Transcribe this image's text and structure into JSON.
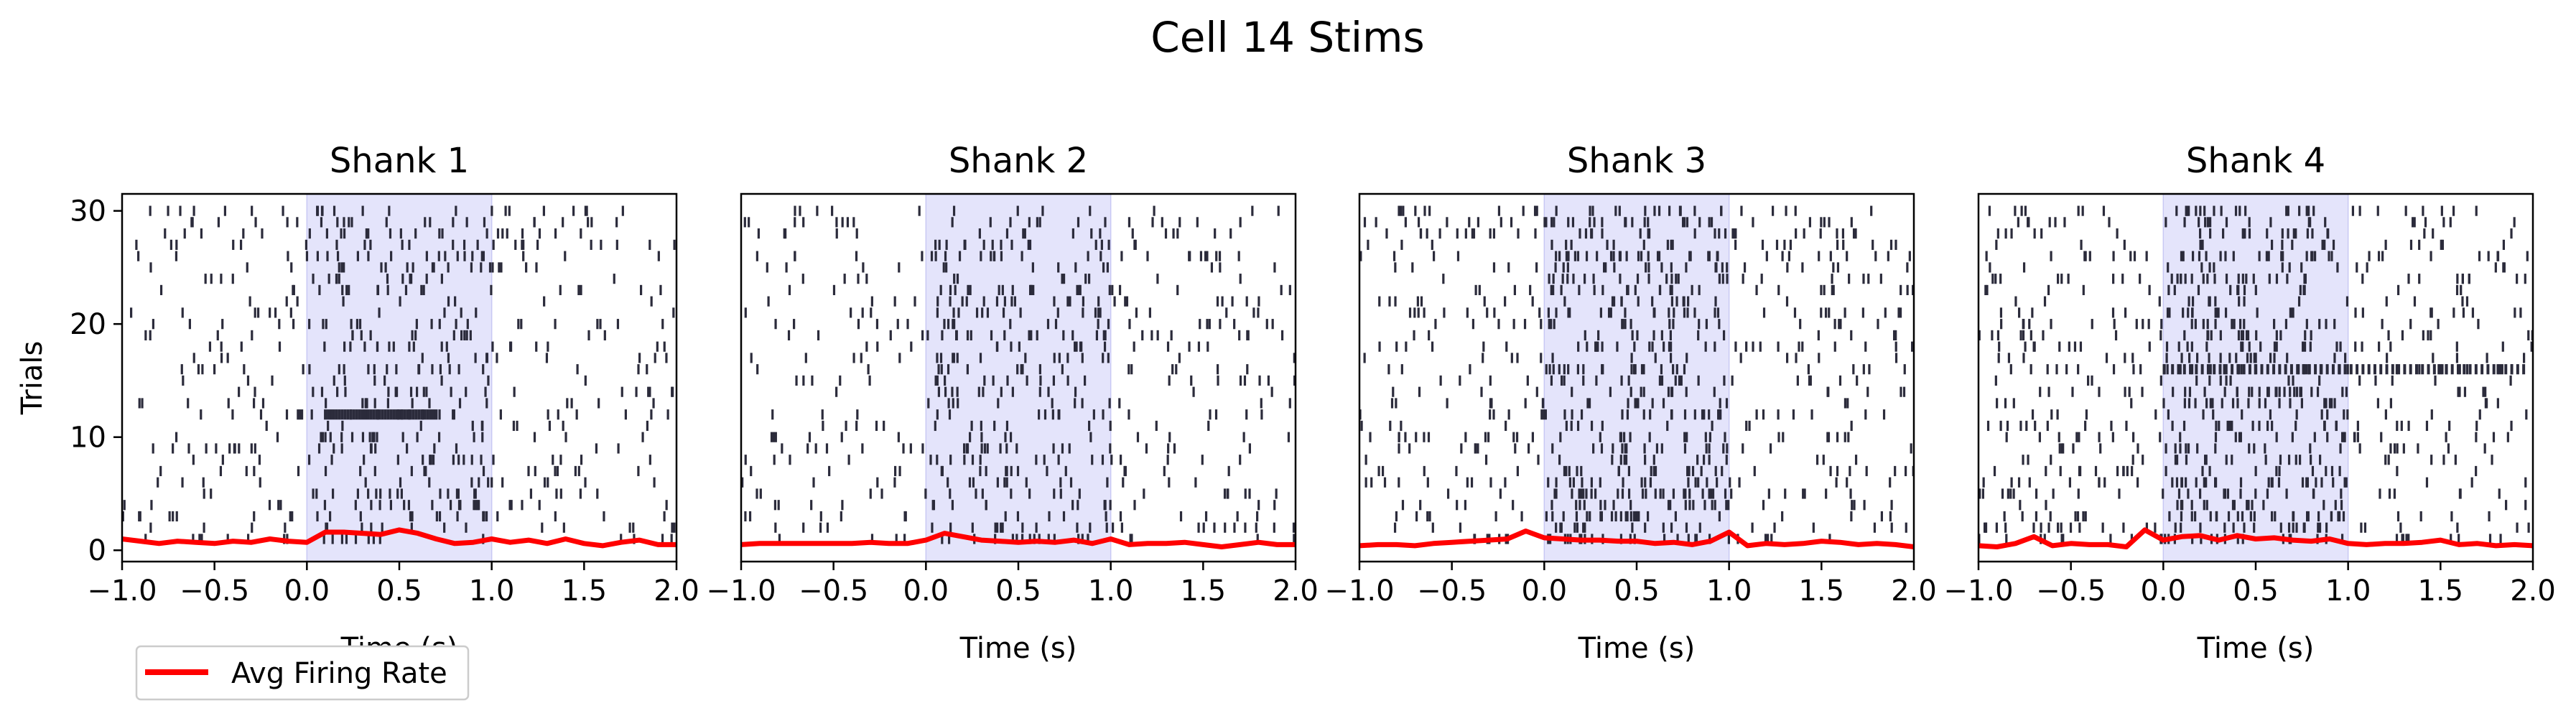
{
  "figure": {
    "title": "Cell 14 Stims"
  },
  "legend": {
    "label": "Avg Firing Rate",
    "color": "#ff0000",
    "placement": "lower-left"
  },
  "chart_data": [
    {
      "type": "raster",
      "title": "Shank 1",
      "xlabel": "Time (s)",
      "ylabel": "Trials",
      "xlim": [
        -1.0,
        2.0
      ],
      "ylim": [
        -1,
        31.5
      ],
      "xticks": [
        "−1.0",
        "−0.5",
        "0.0",
        "0.5",
        "1.0",
        "1.5",
        "2.0"
      ],
      "xtick_values": [
        -1.0,
        -0.5,
        0.0,
        0.5,
        1.0,
        1.5,
        2.0
      ],
      "yticks": [
        "0",
        "10",
        "20",
        "30"
      ],
      "ytick_values": [
        0,
        10,
        20,
        30
      ],
      "stim_window": [
        0.0,
        1.0
      ],
      "stim_color": "#e4e4fb",
      "spike_color": "#2b2b3b",
      "seed": 14101,
      "density": 18,
      "burst": {
        "trial": 12,
        "start": 0.1,
        "end": 0.7,
        "count": 40
      },
      "firing_rate": {
        "name": "Avg Firing Rate",
        "x": [
          -1.0,
          -0.9,
          -0.8,
          -0.7,
          -0.6,
          -0.5,
          -0.4,
          -0.3,
          -0.2,
          -0.1,
          0.0,
          0.1,
          0.2,
          0.3,
          0.4,
          0.5,
          0.6,
          0.7,
          0.8,
          0.9,
          1.0,
          1.1,
          1.2,
          1.3,
          1.4,
          1.5,
          1.6,
          1.7,
          1.8,
          1.9,
          2.0
        ],
        "y": [
          1.0,
          0.8,
          0.6,
          0.8,
          0.7,
          0.6,
          0.8,
          0.7,
          1.0,
          0.8,
          0.7,
          1.6,
          1.6,
          1.5,
          1.4,
          1.8,
          1.5,
          1.0,
          0.6,
          0.7,
          1.0,
          0.7,
          0.9,
          0.6,
          1.0,
          0.6,
          0.4,
          0.7,
          0.9,
          0.5,
          0.5
        ]
      }
    },
    {
      "type": "raster",
      "title": "Shank 2",
      "xlabel": "Time (s)",
      "ylabel": "",
      "xlim": [
        -1.0,
        2.0
      ],
      "ylim": [
        -1,
        31.5
      ],
      "xticks": [
        "−1.0",
        "−0.5",
        "0.0",
        "0.5",
        "1.0",
        "1.5",
        "2.0"
      ],
      "xtick_values": [
        -1.0,
        -0.5,
        0.0,
        0.5,
        1.0,
        1.5,
        2.0
      ],
      "yticks": [],
      "ytick_values": [],
      "stim_window": [
        0.0,
        1.0
      ],
      "stim_color": "#e4e4fb",
      "spike_color": "#2b2b3b",
      "seed": 14202,
      "density": 20,
      "burst": null,
      "firing_rate": {
        "name": "Avg Firing Rate",
        "x": [
          -1.0,
          -0.9,
          -0.8,
          -0.7,
          -0.6,
          -0.5,
          -0.4,
          -0.3,
          -0.2,
          -0.1,
          0.0,
          0.1,
          0.2,
          0.3,
          0.4,
          0.5,
          0.6,
          0.7,
          0.8,
          0.9,
          1.0,
          1.1,
          1.2,
          1.3,
          1.4,
          1.5,
          1.6,
          1.7,
          1.8,
          1.9,
          2.0
        ],
        "y": [
          0.5,
          0.6,
          0.6,
          0.6,
          0.6,
          0.6,
          0.6,
          0.7,
          0.6,
          0.6,
          0.9,
          1.5,
          1.2,
          0.9,
          0.8,
          0.7,
          0.8,
          0.7,
          0.9,
          0.6,
          1.0,
          0.5,
          0.6,
          0.6,
          0.7,
          0.5,
          0.3,
          0.5,
          0.7,
          0.5,
          0.5
        ]
      }
    },
    {
      "type": "raster",
      "title": "Shank 3",
      "xlabel": "Time (s)",
      "ylabel": "",
      "xlim": [
        -1.0,
        2.0
      ],
      "ylim": [
        -1,
        31.5
      ],
      "xticks": [
        "−1.0",
        "−0.5",
        "0.0",
        "0.5",
        "1.0",
        "1.5",
        "2.0"
      ],
      "xtick_values": [
        -1.0,
        -0.5,
        0.0,
        0.5,
        1.0,
        1.5,
        2.0
      ],
      "yticks": [],
      "ytick_values": [],
      "stim_window": [
        0.0,
        1.0
      ],
      "stim_color": "#e4e4fb",
      "spike_color": "#2b2b3b",
      "seed": 14303,
      "density": 26,
      "burst": null,
      "firing_rate": {
        "name": "Avg Firing Rate",
        "x": [
          -1.0,
          -0.9,
          -0.8,
          -0.7,
          -0.6,
          -0.5,
          -0.4,
          -0.3,
          -0.2,
          -0.1,
          0.0,
          0.1,
          0.2,
          0.3,
          0.4,
          0.5,
          0.6,
          0.7,
          0.8,
          0.9,
          1.0,
          1.1,
          1.2,
          1.3,
          1.4,
          1.5,
          1.6,
          1.7,
          1.8,
          1.9,
          2.0
        ],
        "y": [
          0.4,
          0.5,
          0.5,
          0.4,
          0.6,
          0.7,
          0.8,
          0.9,
          1.0,
          1.7,
          1.1,
          1.0,
          0.9,
          0.9,
          0.8,
          0.8,
          0.6,
          0.7,
          0.5,
          0.8,
          1.6,
          0.4,
          0.6,
          0.5,
          0.6,
          0.8,
          0.7,
          0.5,
          0.6,
          0.5,
          0.3
        ]
      }
    },
    {
      "type": "raster",
      "title": "Shank 4",
      "xlabel": "Time (s)",
      "ylabel": "",
      "xlim": [
        -1.0,
        2.0
      ],
      "ylim": [
        -1,
        31.5
      ],
      "xticks": [
        "−1.0",
        "−0.5",
        "0.0",
        "0.5",
        "1.0",
        "1.5",
        "2.0"
      ],
      "xtick_values": [
        -1.0,
        -0.5,
        0.0,
        0.5,
        1.0,
        1.5,
        2.0
      ],
      "yticks": [],
      "ytick_values": [],
      "stim_window": [
        0.0,
        1.0
      ],
      "stim_color": "#e4e4fb",
      "spike_color": "#2b2b3b",
      "seed": 14404,
      "density": 28,
      "burst": {
        "trial": 16,
        "start": 0.05,
        "end": 1.95,
        "count": 60
      },
      "firing_rate": {
        "name": "Avg Firing Rate",
        "x": [
          -1.0,
          -0.9,
          -0.8,
          -0.7,
          -0.6,
          -0.5,
          -0.4,
          -0.3,
          -0.2,
          -0.1,
          0.0,
          0.1,
          0.2,
          0.3,
          0.4,
          0.5,
          0.6,
          0.7,
          0.8,
          0.9,
          1.0,
          1.1,
          1.2,
          1.3,
          1.4,
          1.5,
          1.6,
          1.7,
          1.8,
          1.9,
          2.0
        ],
        "y": [
          0.4,
          0.3,
          0.6,
          1.2,
          0.4,
          0.6,
          0.5,
          0.5,
          0.3,
          1.8,
          0.9,
          1.2,
          1.3,
          0.9,
          1.3,
          1.0,
          1.1,
          0.9,
          0.8,
          1.0,
          0.6,
          0.5,
          0.6,
          0.6,
          0.7,
          0.9,
          0.5,
          0.6,
          0.4,
          0.5,
          0.4
        ]
      }
    }
  ]
}
